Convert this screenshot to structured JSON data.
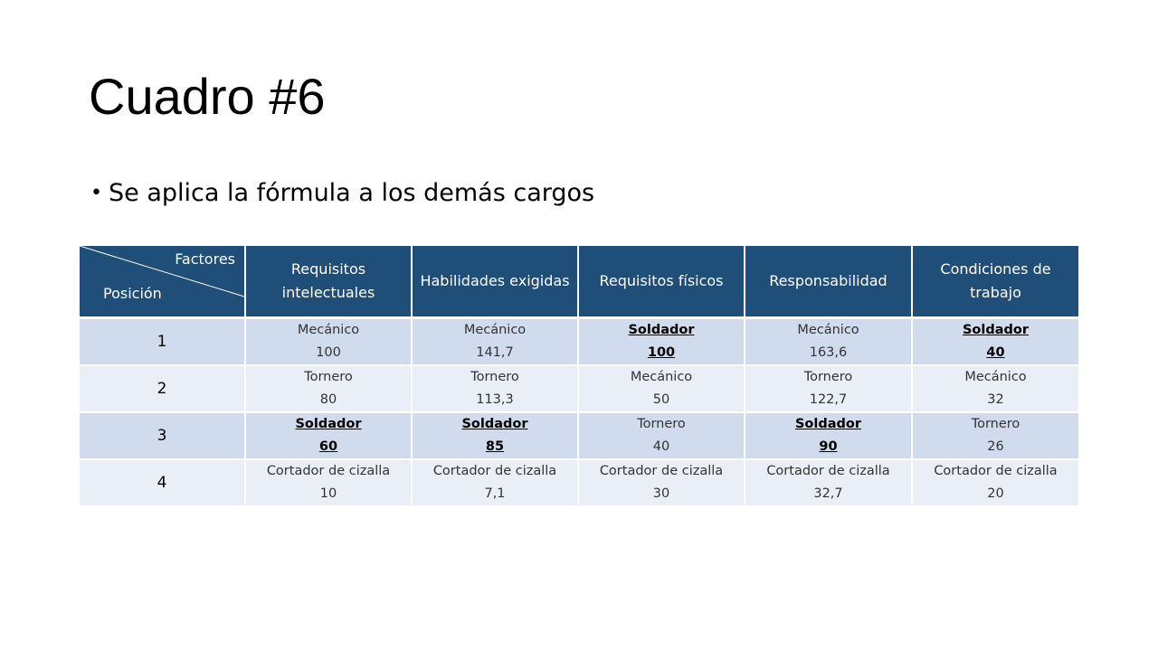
{
  "title": "Cuadro #6",
  "bullet": "Se aplica la fórmula a los demás cargos",
  "table": {
    "corner": {
      "top": "Factores",
      "bottom": "Posición"
    },
    "headers": [
      "Requisitos intelectuales",
      "Habilidades exigidas",
      "Requisitos físicos",
      "Responsabilidad",
      "Condiciones de trabajo"
    ],
    "rows": [
      {
        "position": "1",
        "cells": [
          {
            "name": "Mecánico",
            "value": "100",
            "highlight": false
          },
          {
            "name": "Mecánico",
            "value": "141,7",
            "highlight": false
          },
          {
            "name": "Soldador",
            "value": "100",
            "highlight": true
          },
          {
            "name": "Mecánico",
            "value": "163,6",
            "highlight": false
          },
          {
            "name": "Soldador",
            "value": "40",
            "highlight": true
          }
        ]
      },
      {
        "position": "2",
        "cells": [
          {
            "name": "Tornero",
            "value": "80",
            "highlight": false
          },
          {
            "name": "Tornero",
            "value": "113,3",
            "highlight": false
          },
          {
            "name": "Mecánico",
            "value": "50",
            "highlight": false
          },
          {
            "name": "Tornero",
            "value": "122,7",
            "highlight": false
          },
          {
            "name": "Mecánico",
            "value": "32",
            "highlight": false
          }
        ]
      },
      {
        "position": "3",
        "cells": [
          {
            "name": "Soldador",
            "value": "60",
            "highlight": true
          },
          {
            "name": "Soldador",
            "value": "85",
            "highlight": true
          },
          {
            "name": "Tornero",
            "value": "40",
            "highlight": false
          },
          {
            "name": "Soldador",
            "value": "90",
            "highlight": true
          },
          {
            "name": "Tornero",
            "value": "26",
            "highlight": false
          }
        ]
      },
      {
        "position": "4",
        "cells": [
          {
            "name": "Cortador de cizalla",
            "value": "10",
            "highlight": false
          },
          {
            "name": "Cortador de cizalla",
            "value": "7,1",
            "highlight": false
          },
          {
            "name": "Cortador de cizalla",
            "value": "30",
            "highlight": false
          },
          {
            "name": "Cortador de cizalla",
            "value": "32,7",
            "highlight": false
          },
          {
            "name": "Cortador de cizalla",
            "value": "20",
            "highlight": false
          }
        ]
      }
    ]
  }
}
